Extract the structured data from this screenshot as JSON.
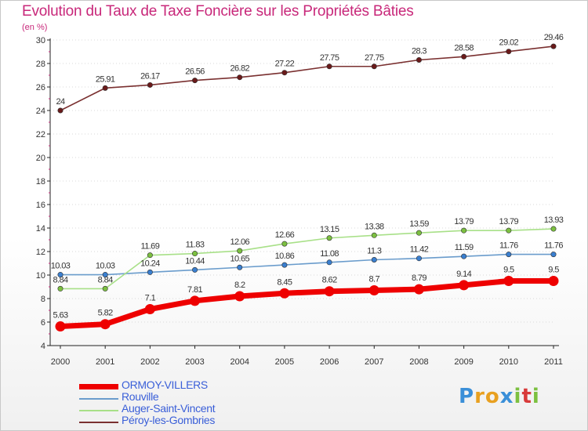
{
  "chart_title": "Evolution du Taux de Taxe Foncière sur les Propriétés Bâties",
  "chart_unit": "(en %)",
  "brand": {
    "letters": [
      "P",
      "r",
      "o",
      "x",
      "i",
      "t",
      "i"
    ],
    "colors": [
      "#3a8fd8",
      "#e8a020",
      "#e8a020",
      "#3a8fd8",
      "#7cc040",
      "#d83a3a",
      "#7cc040"
    ]
  },
  "chart_data": {
    "type": "line",
    "title": "Evolution du Taux de Taxe Foncière sur les Propriétés Bâties",
    "ylabel": "(en %)",
    "xlabel": "",
    "x": [
      "2000",
      "2001",
      "2002",
      "2003",
      "2004",
      "2005",
      "2006",
      "2007",
      "2008",
      "2009",
      "2010",
      "2011"
    ],
    "ylim": [
      4,
      30
    ],
    "yticks": [
      4,
      6,
      8,
      10,
      12,
      14,
      16,
      18,
      20,
      22,
      24,
      26,
      28,
      30
    ],
    "legend_position": "bottom-left",
    "series": [
      {
        "name": "ORMOY-VILLERS",
        "color": "#ee0000",
        "marker_color": "#ee0000",
        "emphasis": true,
        "values": [
          5.63,
          5.82,
          7.1,
          7.81,
          8.2,
          8.45,
          8.62,
          8.7,
          8.79,
          9.14,
          9.5,
          9.5
        ],
        "labels": [
          "5.63",
          "5.82",
          "7.1",
          "7.81",
          "8.2",
          "8.45",
          "8.62",
          "8.7",
          "8.79",
          "9.14",
          "9.5",
          "9.5"
        ]
      },
      {
        "name": "Rouville",
        "color": "#6a9ccc",
        "marker_color": "#3a7fd0",
        "emphasis": false,
        "values": [
          10.03,
          10.03,
          10.24,
          10.44,
          10.65,
          10.86,
          11.08,
          11.3,
          11.42,
          11.59,
          11.76,
          11.76
        ],
        "labels": [
          "10.03",
          "10.03",
          "10.24",
          "10.44",
          "10.65",
          "10.86",
          "11.08",
          "11.3",
          "11.42",
          "11.59",
          "11.76",
          "11.76"
        ]
      },
      {
        "name": "Auger-Saint-Vincent",
        "color": "#a8e088",
        "marker_color": "#7cc040",
        "emphasis": false,
        "values": [
          8.84,
          8.84,
          11.69,
          11.83,
          12.06,
          12.66,
          13.15,
          13.38,
          13.59,
          13.79,
          13.79,
          13.93
        ],
        "labels": [
          "8.84",
          "8.84",
          "11.69",
          "11.83",
          "12.06",
          "12.66",
          "13.15",
          "13.38",
          "13.59",
          "13.79",
          "13.79",
          "13.93"
        ]
      },
      {
        "name": "Péroy-les-Gombries",
        "color": "#7a3030",
        "marker_color": "#6a1a1a",
        "emphasis": false,
        "values": [
          24,
          25.91,
          26.17,
          26.56,
          26.82,
          27.22,
          27.75,
          27.75,
          28.3,
          28.58,
          29.02,
          29.46
        ],
        "labels": [
          "24",
          "25.91",
          "26.17",
          "26.56",
          "26.82",
          "27.22",
          "27.75",
          "27.75",
          "28.3",
          "28.58",
          "29.02",
          "29.46"
        ]
      }
    ]
  }
}
